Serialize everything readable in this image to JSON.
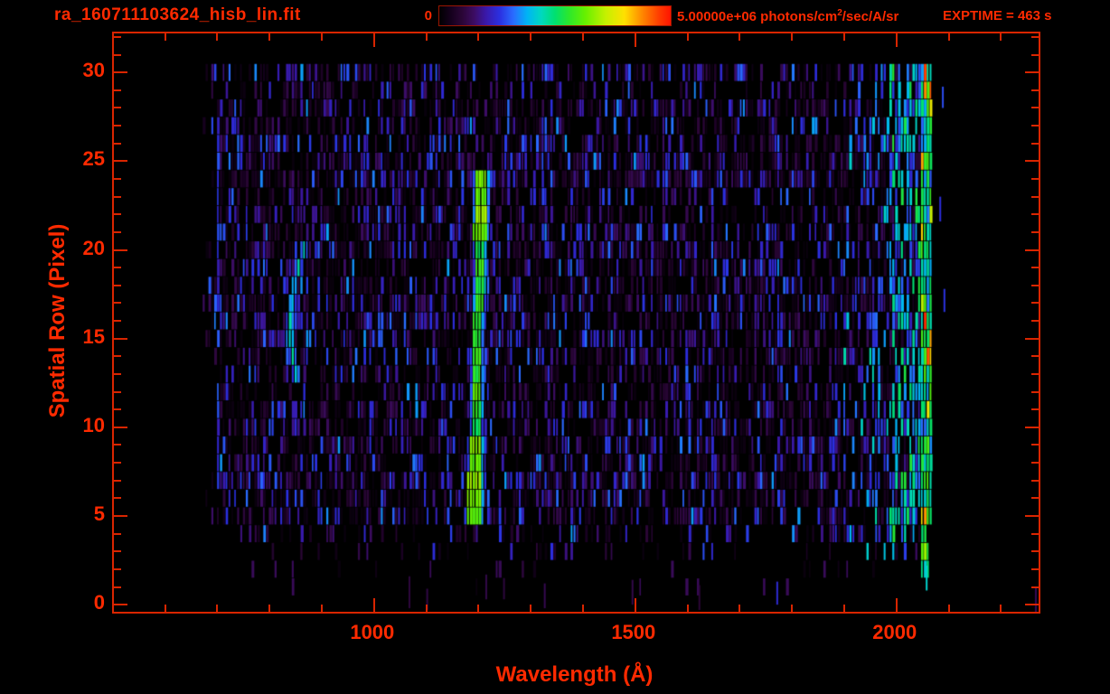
{
  "header": {
    "title": "ra_160711103624_hisb_lin.fit",
    "exptime": "EXPTIME = 463 s",
    "colorbar": {
      "min_label": "0",
      "max_label_prefix": "5.00000e+06 photons/cm",
      "max_label_sup": "2",
      "max_label_suffix": "/sec/A/sr"
    }
  },
  "colors": {
    "background": "#000000",
    "accent_text": "#ff2a00",
    "axis_line": "#d92500",
    "colorbar_border": "#9a1600"
  },
  "chart_data": {
    "type": "heatmap",
    "title": "ra_160711103624_hisb_lin.fit",
    "xlabel": "Wavelength (Å)",
    "ylabel": "Spatial Row (Pixel)",
    "x_range": [
      502,
      2272
    ],
    "y_range": [
      -0.4,
      32.2
    ],
    "x_major_ticks": [
      1000,
      1500,
      2000
    ],
    "x_minor_step": 100,
    "y_major_ticks": [
      0,
      5,
      10,
      15,
      20,
      25,
      30
    ],
    "y_minor_step": 1,
    "grid": false,
    "legend": "none",
    "colorbar": {
      "min": 0,
      "max": 5000000,
      "units": "photons/cm2/sec/A/sr",
      "position": "top"
    },
    "exptime_seconds": 463,
    "colormap_stops": [
      [
        0.0,
        "#000000"
      ],
      [
        0.05,
        "#15001d"
      ],
      [
        0.1,
        "#2b0637"
      ],
      [
        0.15,
        "#3c0c62"
      ],
      [
        0.2,
        "#3a18a8"
      ],
      [
        0.26,
        "#2b2fe0"
      ],
      [
        0.32,
        "#2a6bff"
      ],
      [
        0.38,
        "#00b4f5"
      ],
      [
        0.44,
        "#00d8c0"
      ],
      [
        0.5,
        "#00e070"
      ],
      [
        0.56,
        "#2ce82c"
      ],
      [
        0.63,
        "#66f000"
      ],
      [
        0.72,
        "#c6f000"
      ],
      [
        0.8,
        "#ffe000"
      ],
      [
        0.88,
        "#ff8400"
      ],
      [
        0.95,
        "#ff3c00"
      ],
      [
        1.0,
        "#ff1400"
      ]
    ],
    "image": {
      "rows": 32,
      "data_rows": [
        1,
        30
      ],
      "wavelength_start": 672,
      "wavelength_end": 2069,
      "bin_width_angstrom": 5.5,
      "row_density_default": [
        0.5,
        0.8
      ],
      "row_density": {
        "1": 0.04,
        "2": 0.07,
        "3": 0.16,
        "4": 0.34,
        "27": 0.52,
        "28": 0.62,
        "29": 0.36,
        "30": 0.62
      },
      "background_value_range": [
        0.02,
        0.26
      ],
      "features": {
        "emission_line_bright": {
          "name": "Lyman-alpha emission line",
          "wavelength_center": 1196,
          "drift_per_row": 0.75,
          "rows": [
            5,
            24
          ],
          "core_halfwidth_narrow": 8,
          "core_halfwidth_wide": 12,
          "core_value": 0.52,
          "bright_bonus": 0.07,
          "fringe_value": 0.3
        },
        "arc_line": {
          "name": "curved faint emission arc",
          "vertex_wavelength": 838,
          "vertex_row": 15.8,
          "curvature": 1.45,
          "rows": [
            13,
            20
          ],
          "halfwidth": 8,
          "peak_value": 0.44
        },
        "blue_column": {
          "wavelength": 701,
          "rows": [
            5,
            26
          ],
          "value": 0.2
        },
        "longwave_brightening": {
          "start": 1890,
          "end": 2069,
          "max_boost": 0.55
        },
        "edge_band": {
          "start": 2046,
          "end": 2069,
          "value": 0.3,
          "hot_fraction": 0.12
        },
        "bottom_edge_strip": {
          "start": 2046,
          "end": 2058,
          "rows": [
            2,
            5
          ],
          "value": 0.42
        },
        "stray_columns": [
          {
            "wavelength": 1066,
            "row_span": [
              -0.2,
              1.6
            ],
            "value": 0.1
          },
          {
            "wavelength": 1100,
            "row_span": [
              -0.3,
              0.9
            ],
            "value": 0.09
          },
          {
            "wavelength": 1213,
            "row_span": [
              0.3,
              1.7
            ],
            "value": 0.11
          },
          {
            "wavelength": 1247,
            "row_span": [
              0.3,
              1.5
            ],
            "value": 0.1
          },
          {
            "wavelength": 1325,
            "row_span": [
              -0.2,
              1.2
            ],
            "value": 0.1
          },
          {
            "wavelength": 1493,
            "row_span": [
              0.0,
              1.4
            ],
            "value": 0.12
          },
          {
            "wavelength": 1621,
            "row_span": [
              -0.3,
              1.1
            ],
            "value": 0.1
          },
          {
            "wavelength": 1770,
            "row_span": [
              0.0,
              1.3
            ],
            "value": 0.22
          },
          {
            "wavelength": 2087,
            "row_span": [
              28.0,
              29.2
            ],
            "value": 0.27
          },
          {
            "wavelength": 2082,
            "row_span": [
              21.6,
              23.0
            ],
            "value": 0.25
          },
          {
            "wavelength": 2090,
            "row_span": [
              16.5,
              17.8
            ],
            "value": 0.26
          },
          {
            "wavelength": 2265,
            "row_span": [
              -0.4,
              1.0
            ],
            "value": 0.12
          },
          {
            "wavelength": 2056,
            "row_span": [
              0.8,
              2.2
            ],
            "value": 0.4
          }
        ]
      }
    }
  }
}
